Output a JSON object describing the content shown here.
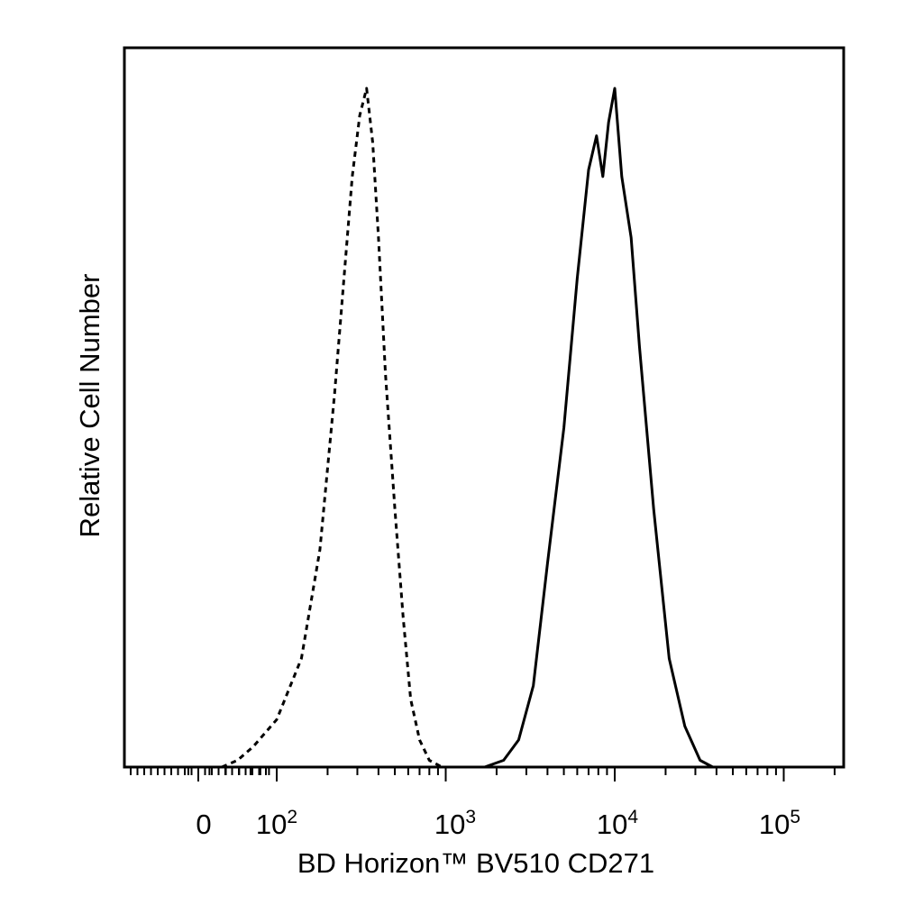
{
  "chart_data": {
    "type": "line",
    "xlabel": "BD Horizon™ BV510 CD271",
    "ylabel": "Relative Cell Number",
    "x_scale": "biexponential",
    "x_ticks": [
      {
        "base": "0",
        "exp": ""
      },
      {
        "base": "10",
        "exp": "2"
      },
      {
        "base": "10",
        "exp": "3"
      },
      {
        "base": "10",
        "exp": "4"
      },
      {
        "base": "10",
        "exp": "5"
      }
    ],
    "y_axis_ticks_labeled": false,
    "legend": "none",
    "series": [
      {
        "style": "dashed",
        "color": "#000000",
        "points": [
          [
            30,
            0
          ],
          [
            50,
            0.01
          ],
          [
            70,
            0.03
          ],
          [
            100,
            0.07
          ],
          [
            140,
            0.16
          ],
          [
            180,
            0.32
          ],
          [
            220,
            0.55
          ],
          [
            250,
            0.72
          ],
          [
            280,
            0.87
          ],
          [
            310,
            0.96
          ],
          [
            340,
            1.0
          ],
          [
            370,
            0.92
          ],
          [
            400,
            0.78
          ],
          [
            440,
            0.58
          ],
          [
            500,
            0.38
          ],
          [
            560,
            0.22
          ],
          [
            620,
            0.1
          ],
          [
            700,
            0.04
          ],
          [
            800,
            0.01
          ],
          [
            950,
            0.0
          ]
        ]
      },
      {
        "style": "solid",
        "color": "#000000",
        "points": [
          [
            1700,
            0
          ],
          [
            2200,
            0.01
          ],
          [
            2700,
            0.04
          ],
          [
            3300,
            0.12
          ],
          [
            4000,
            0.3
          ],
          [
            5000,
            0.5
          ],
          [
            6000,
            0.72
          ],
          [
            7000,
            0.88
          ],
          [
            7800,
            0.93
          ],
          [
            8500,
            0.87
          ],
          [
            9200,
            0.95
          ],
          [
            10000,
            1.0
          ],
          [
            11000,
            0.87
          ],
          [
            12500,
            0.78
          ],
          [
            14000,
            0.62
          ],
          [
            17000,
            0.38
          ],
          [
            21000,
            0.16
          ],
          [
            26000,
            0.06
          ],
          [
            32000,
            0.01
          ],
          [
            38000,
            0.0
          ]
        ]
      }
    ]
  }
}
